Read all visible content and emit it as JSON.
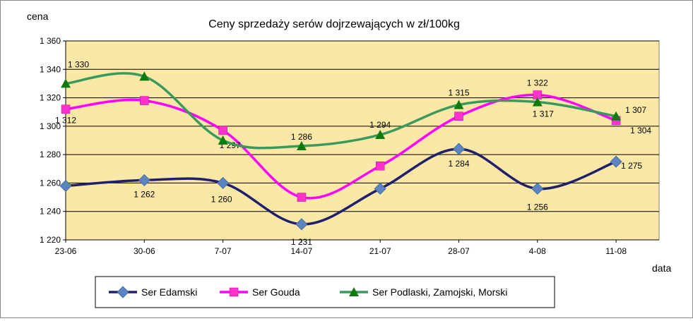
{
  "chart_data": {
    "type": "line",
    "title": "Ceny sprzedaży serów dojrzewających w zł/100kg",
    "ylabel": "cena",
    "xlabel": "data",
    "categories": [
      "23-06",
      "30-06",
      "7-07",
      "14-07",
      "21-07",
      "28-07",
      "4-08",
      "11-08"
    ],
    "ylim": [
      1220,
      1360
    ],
    "yticks": [
      1220,
      1240,
      1260,
      1280,
      1300,
      1320,
      1340,
      1360
    ],
    "ytick_labels": [
      "1 220",
      "1 240",
      "1 260",
      "1 280",
      "1 300",
      "1 320",
      "1 340",
      "1 360"
    ],
    "grid": true,
    "plot_background": "#FBE8A6",
    "legend_position": "bottom",
    "series": [
      {
        "name": "Ser Edamski",
        "color": "#1F1F6E",
        "marker_color": "#5B84C0",
        "marker": "diamond",
        "values": [
          1258,
          1262,
          1260,
          1231,
          1256,
          1284,
          1256,
          1275
        ],
        "labels": [
          "",
          "1 262",
          "1 260",
          "1 231",
          "",
          "1 284",
          "1 256",
          "1 275"
        ]
      },
      {
        "name": "Ser Gouda",
        "color": "#FF00FF",
        "marker_color": "#FF33CC",
        "marker": "square",
        "values": [
          1312,
          1318,
          1297,
          1250,
          1272,
          1307,
          1322,
          1304
        ],
        "labels": [
          "1 312",
          "",
          "1 297",
          "",
          "",
          "",
          "1 322",
          "1 304"
        ]
      },
      {
        "name": "Ser Podlaski, Zamojski, Morski",
        "color": "#3A9A5C",
        "marker_color": "#0F7A0F",
        "marker": "triangle",
        "values": [
          1330,
          1335,
          1290,
          1286,
          1294,
          1315,
          1317,
          1307
        ],
        "labels": [
          "1 330",
          "",
          "",
          "1 286",
          "1 294",
          "1 315",
          "1 317",
          "1 307"
        ]
      }
    ]
  }
}
